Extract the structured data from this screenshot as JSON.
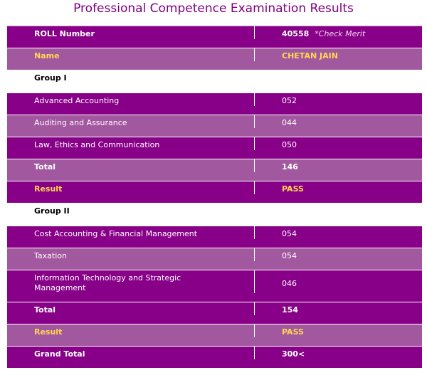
{
  "page": {
    "title": "Professional Competence Examination Results"
  },
  "roll": {
    "label": "ROLL Number",
    "value": "40558",
    "note": "*Check Merit"
  },
  "name": {
    "label": "Name",
    "value": "CHETAN JAIN"
  },
  "group1": {
    "heading": "Group I",
    "subjects": [
      {
        "name": "Advanced Accounting",
        "marks": "052"
      },
      {
        "name": "Auditing and Assurance",
        "marks": "044"
      },
      {
        "name": "Law, Ethics and Communication",
        "marks": "050"
      }
    ],
    "total_label": "Total",
    "total_value": "146",
    "result_label": "Result",
    "result_value": "PASS"
  },
  "group2": {
    "heading": "Group II",
    "subjects": [
      {
        "name": "Cost Accounting & Financial Management",
        "marks": "054"
      },
      {
        "name": "Taxation",
        "marks": "054"
      },
      {
        "name": "Information Technology and Strategic Management",
        "marks": "046"
      }
    ],
    "total_label": "Total",
    "total_value": "154",
    "result_label": "Result",
    "result_value": "PASS"
  },
  "grand_total": {
    "label": "Grand Total",
    "value": "300<"
  },
  "colors": {
    "dark": "#880088",
    "light": "#a2589f",
    "accent": "#ffd850",
    "title": "#800080"
  }
}
